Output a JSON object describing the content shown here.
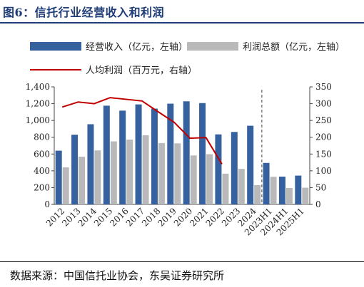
{
  "figure": {
    "title": "图6：信托行业经营收入和利润",
    "source": "数据来源：中国信托业协会，东吴证券研究所"
  },
  "colors": {
    "revenue": "#35619f",
    "profit": "#b9b9b9",
    "per_capita": "#c00000",
    "title": "#1f3d78"
  },
  "chart_data": {
    "type": "bar",
    "categories": [
      "2012",
      "2013",
      "2014",
      "2015",
      "2016",
      "2017",
      "2018",
      "2019",
      "2020",
      "2021",
      "2022",
      "2023",
      "2024",
      "2023H1",
      "2024H1",
      "2025H1"
    ],
    "series": [
      {
        "name": "经营收入（亿元，左轴）",
        "type": "bar",
        "axis": "left",
        "values": [
          640,
          830,
          955,
          1176,
          1117,
          1191,
          1141,
          1200,
          1228,
          1207,
          834,
          863,
          937,
          494,
          331,
          343
        ]
      },
      {
        "name": "利润总额（亿元，左轴）",
        "type": "bar",
        "axis": "left",
        "values": [
          441,
          568,
          643,
          751,
          772,
          824,
          731,
          727,
          583,
          598,
          366,
          423,
          230,
          329,
          196,
          199
        ]
      },
      {
        "name": "人均利润（百万元，右轴）",
        "type": "line",
        "axis": "right",
        "values": [
          290,
          305,
          300,
          318,
          313,
          308,
          276,
          245,
          197,
          199,
          120,
          null,
          null,
          null,
          null,
          null
        ]
      }
    ],
    "y_left": {
      "min": 0,
      "max": 1400,
      "ticks": [
        "0",
        "200",
        "400",
        "600",
        "800",
        "1,000",
        "1,200",
        "1,400"
      ]
    },
    "y_right": {
      "min": 0,
      "max": 350,
      "ticks": [
        "0",
        "50",
        "100",
        "150",
        "200",
        "250",
        "300",
        "350"
      ]
    },
    "divider_after_category": "2024",
    "legend_placement": "top",
    "grid": false
  }
}
